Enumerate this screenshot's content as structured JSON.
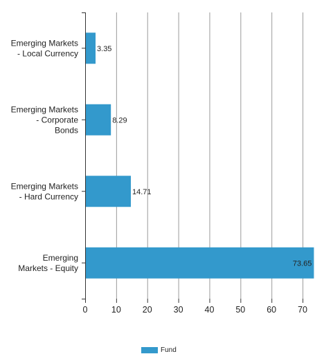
{
  "chart_data": {
    "type": "bar",
    "orientation": "horizontal",
    "categories": [
      [
        "Emerging Markets",
        "- Local Currency"
      ],
      [
        "Emerging Markets",
        "- Corporate",
        "Bonds"
      ],
      [
        "Emerging Markets",
        "- Hard Currency"
      ],
      [
        "Emerging",
        "Markets - Equity"
      ]
    ],
    "series": [
      {
        "name": "Fund",
        "values": [
          3.35,
          8.29,
          14.71,
          73.65
        ],
        "color": "#3399cc"
      }
    ],
    "xlim": [
      0,
      74
    ],
    "xticks": [
      0,
      10,
      20,
      30,
      40,
      50,
      60,
      70
    ],
    "grid": true,
    "legend_position": "bottom-center",
    "title": "",
    "xlabel": "",
    "ylabel": ""
  }
}
